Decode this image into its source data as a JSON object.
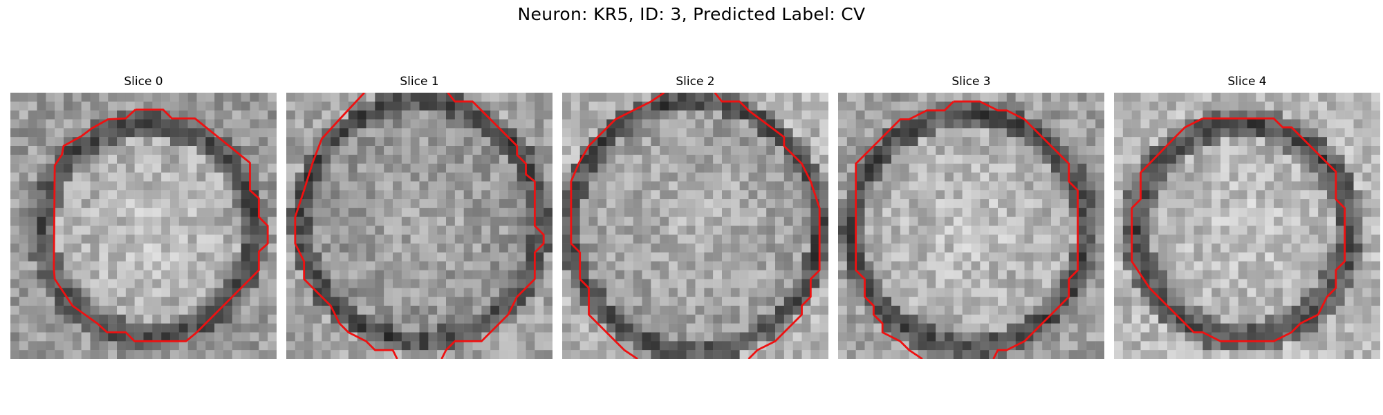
{
  "figure": {
    "title": "Neuron: KR5, ID: 3, Predicted Label: CV",
    "contour_color": "#ee1111",
    "colormap": "grayscale"
  },
  "slices": [
    {
      "label": "Slice 0"
    },
    {
      "label": "Slice 1"
    },
    {
      "label": "Slice 2"
    },
    {
      "label": "Slice 3"
    },
    {
      "label": "Slice 4"
    }
  ]
}
